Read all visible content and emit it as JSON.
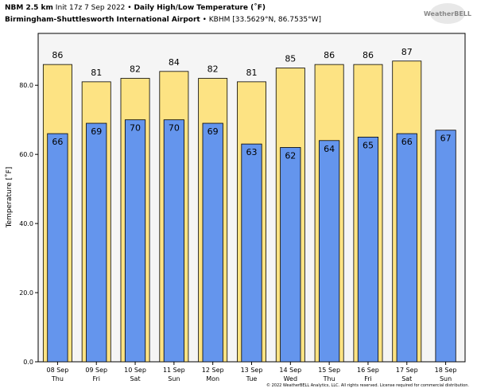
{
  "chart_data": {
    "type": "bar",
    "header": {
      "model": "NBM 2.5 km",
      "init": "Init 17z 7 Sep 2022 •",
      "title": "Daily High/Low Temperature (˚F)",
      "location": "Birmingham-Shuttlesworth International Airport",
      "station": "• KBHM [33.5629°N, 86.7535°W]"
    },
    "logo": "WeatherBELL",
    "footer": "© 2022 WeatherBELL Analytics, LLC. All rights reserved. License required for commercial distribution.",
    "ylabel": "Temperature [˚F]",
    "categories": [
      "08 Sep",
      "09 Sep",
      "10 Sep",
      "11 Sep",
      "12 Sep",
      "13 Sep",
      "14 Sep",
      "15 Sep",
      "16 Sep",
      "17 Sep",
      "18 Sep"
    ],
    "weekdays": [
      "Thu",
      "Fri",
      "Sat",
      "Sun",
      "Mon",
      "Tue",
      "Wed",
      "Thu",
      "Fri",
      "Sat",
      "Sun"
    ],
    "series": [
      {
        "name": "High",
        "color": "#fde383",
        "values": [
          86,
          81,
          82,
          84,
          82,
          81,
          85,
          86,
          86,
          87,
          null
        ]
      },
      {
        "name": "Low",
        "color": "#6495ed",
        "values": [
          66,
          69,
          70,
          70,
          69,
          63,
          62,
          64,
          65,
          66,
          67
        ]
      }
    ],
    "ylim": [
      0,
      95
    ],
    "yticks": [
      {
        "value": 0,
        "label": "0.0"
      },
      {
        "value": 20,
        "label": "20.0"
      },
      {
        "value": 40,
        "label": "40.0"
      },
      {
        "value": 60,
        "label": "60.0"
      },
      {
        "value": 80,
        "label": "80.0"
      }
    ],
    "grid": false
  }
}
